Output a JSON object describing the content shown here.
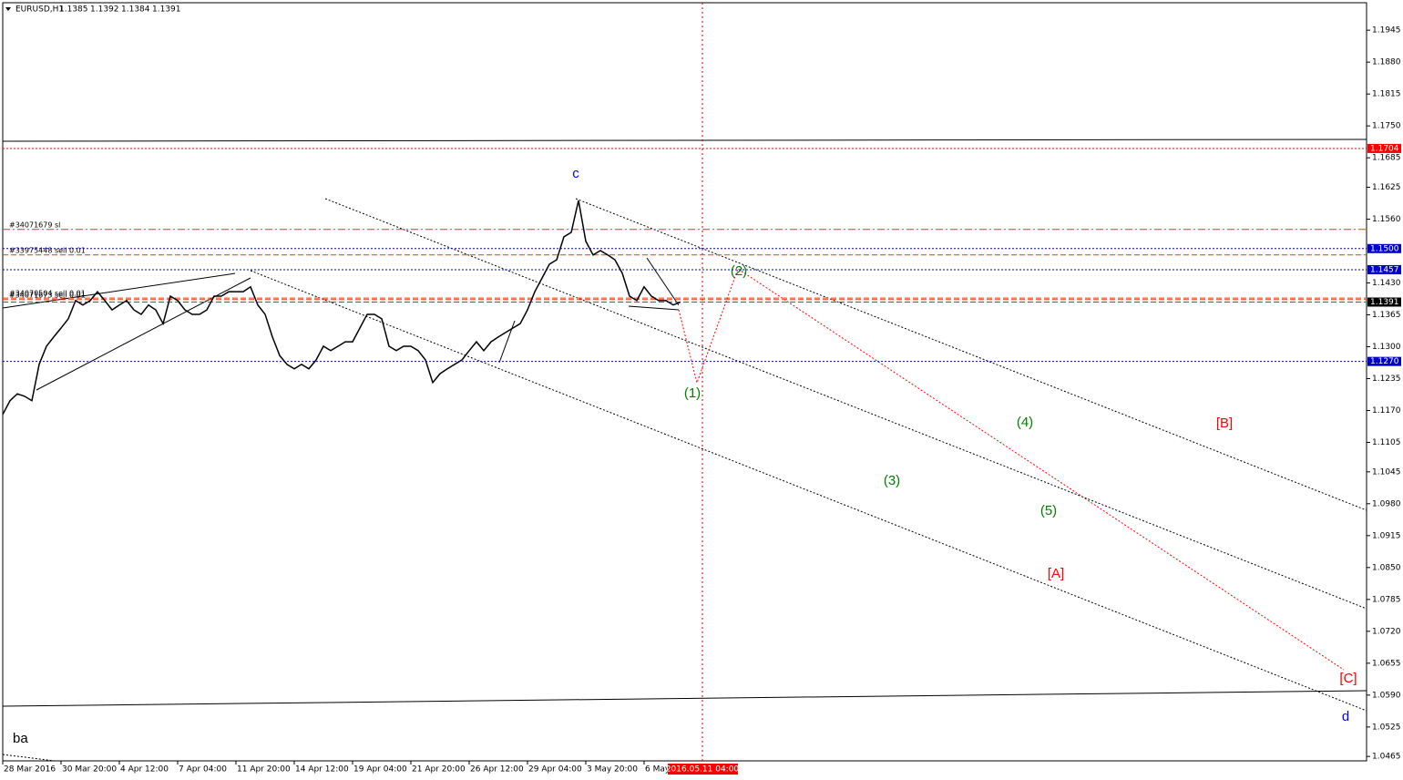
{
  "chart_data": {
    "type": "line",
    "title": "EURUSD,H1",
    "ohlc": [
      1.1385,
      1.1392,
      1.1384,
      1.1391
    ],
    "categories": [
      "28 Mar 2016",
      null,
      null,
      null,
      null,
      null,
      null,
      null,
      "30 Mar 20:00",
      null,
      null,
      null,
      null,
      null,
      null,
      null,
      "4 Apr 12:00",
      null,
      null,
      null,
      null,
      null,
      null,
      null,
      "7 Apr 04:00",
      null,
      null,
      null,
      null,
      null,
      null,
      null,
      "11 Apr 20:00",
      null,
      null,
      null,
      null,
      null,
      null,
      null,
      "14 Apr 12:00",
      null,
      null,
      null,
      null,
      null,
      null,
      null,
      "19 Apr 04:00",
      null,
      null,
      null,
      null,
      null,
      null,
      null,
      "21 Apr 20:00",
      null,
      null,
      null,
      null,
      null,
      null,
      null,
      "26 Apr 12:00",
      null,
      null,
      null,
      null,
      null,
      null,
      null,
      "29 Apr 04:00",
      null,
      null,
      null,
      null,
      null,
      null,
      null,
      "3 May 20:00",
      null,
      null,
      null,
      null,
      null,
      null,
      null,
      "6 May",
      null,
      null,
      null,
      null,
      null
    ],
    "series": [
      {
        "name": "EURUSD",
        "color": "#000000",
        "values": [
          1.1162,
          1.119,
          1.1204,
          1.1199,
          1.119,
          1.1264,
          1.1301,
          1.132,
          1.1338,
          1.1357,
          1.1394,
          1.1385,
          1.1394,
          1.1412,
          1.1394,
          1.1375,
          1.1385,
          1.1394,
          1.1375,
          1.1366,
          1.1385,
          1.1375,
          1.1347,
          1.1403,
          1.1394,
          1.1375,
          1.1366,
          1.1366,
          1.1375,
          1.1403,
          1.1403,
          1.1412,
          1.1412,
          1.1412,
          1.1422,
          1.1385,
          1.1366,
          1.132,
          1.1282,
          1.1264,
          1.1255,
          1.1264,
          1.1255,
          1.1273,
          1.1301,
          1.1292,
          1.1301,
          1.131,
          1.131,
          1.1338,
          1.1366,
          1.1366,
          1.1357,
          1.1301,
          1.1292,
          1.1301,
          1.1301,
          1.1292,
          1.1273,
          1.1227,
          1.1245,
          1.1255,
          1.1264,
          1.1273,
          1.1292,
          1.131,
          1.1292,
          1.131,
          1.132,
          1.1329,
          1.1338,
          1.1347,
          1.1375,
          1.1412,
          1.144,
          1.1468,
          1.1477,
          1.1524,
          1.1533,
          1.1598,
          1.1515,
          1.1487,
          1.1496,
          1.1487,
          1.1477,
          1.145,
          1.1403,
          1.1394,
          1.1422,
          1.1403,
          1.1394,
          1.1394,
          1.1385,
          1.1391
        ]
      }
    ],
    "ylim": [
      1.0456,
      1.2001
    ],
    "yticks": [
      1.1945,
      {
        "value": 1.188,
        "label": "1.1880"
      },
      1.1815,
      {
        "value": 1.175,
        "label": "1.1750"
      },
      1.1685,
      1.1625,
      {
        "value": 1.156,
        "label": "1.1560"
      },
      {
        "value": 1.143,
        "label": "1.1430"
      },
      1.1365,
      {
        "value": 1.13,
        "label": "1.1300"
      },
      1.1235,
      {
        "value": 1.117,
        "label": "1.1170"
      },
      1.1105,
      1.1045,
      {
        "value": 1.098,
        "label": "1.0980"
      },
      1.0915,
      {
        "value": 1.085,
        "label": "1.0850"
      },
      1.0785,
      {
        "value": 1.072,
        "label": "1.0720"
      },
      1.0655,
      {
        "value": 1.059,
        "label": "1.0590"
      },
      1.0525,
      1.0465
    ],
    "price_levels": [
      {
        "value": 1.1704,
        "color": "#ff0000"
      },
      {
        "value": 1.15,
        "label": "1.1500",
        "color": "#0000cc"
      },
      {
        "value": 1.1457,
        "color": "#0000cc"
      },
      {
        "value": 1.1391,
        "color": "#000000"
      },
      {
        "value": 1.127,
        "label": "1.1270",
        "color": "#0000cc"
      }
    ],
    "orders": [
      {
        "name": "#34071679 sl",
        "value": 1.1539
      },
      {
        "name": "#33975448 sell 0.01",
        "value": 1.1487
      },
      {
        "name": "#34070504 sell 0.01",
        "value": 1.1399
      },
      {
        "name": "#34071673 sell 0.01",
        "value": 1.1396
      }
    ],
    "crosshair_label": "2016.05.11 04:00",
    "annotations": {
      "c": "c",
      "w1": "(1)",
      "w2": "(2)",
      "w3": "(3)",
      "w4": "(4)",
      "w5": "(5)",
      "A": "[A]",
      "B": "[B]",
      "C": "[C]",
      "d": "d",
      "ba": "ba"
    }
  }
}
